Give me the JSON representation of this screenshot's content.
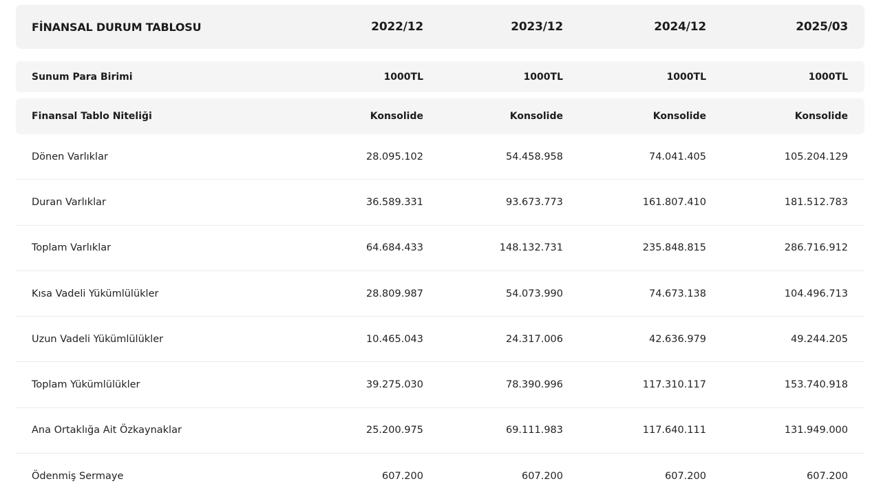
{
  "table": {
    "title": "FİNANSAL DURUM TABLOSU",
    "periods": [
      "2022/12",
      "2023/12",
      "2024/12",
      "2025/03"
    ],
    "currency": {
      "label": "Sunum Para Birimi",
      "values": [
        "1000TL",
        "1000TL",
        "1000TL",
        "1000TL"
      ]
    },
    "nature": {
      "label": "Finansal Tablo Niteliği",
      "values": [
        "Konsolide",
        "Konsolide",
        "Konsolide",
        "Konsolide"
      ]
    },
    "rows": [
      {
        "label": "Dönen Varlıklar",
        "values": [
          "28.095.102",
          "54.458.958",
          "74.041.405",
          "105.204.129"
        ]
      },
      {
        "label": "Duran Varlıklar",
        "values": [
          "36.589.331",
          "93.673.773",
          "161.807.410",
          "181.512.783"
        ]
      },
      {
        "label": "Toplam Varlıklar",
        "values": [
          "64.684.433",
          "148.132.731",
          "235.848.815",
          "286.716.912"
        ]
      },
      {
        "label": "Kısa Vadeli Yükümlülükler",
        "values": [
          "28.809.987",
          "54.073.990",
          "74.673.138",
          "104.496.713"
        ]
      },
      {
        "label": "Uzun Vadeli Yükümlülükler",
        "values": [
          "10.465.043",
          "24.317.006",
          "42.636.979",
          "49.244.205"
        ]
      },
      {
        "label": "Toplam Yükümlülükler",
        "values": [
          "39.275.030",
          "78.390.996",
          "117.310.117",
          "153.740.918"
        ]
      },
      {
        "label": "Ana Ortaklığa Ait Özkaynaklar",
        "values": [
          "25.200.975",
          "69.111.983",
          "117.640.111",
          "131.949.000"
        ]
      },
      {
        "label": "Ödenmiş Sermaye",
        "values": [
          "607.200",
          "607.200",
          "607.200",
          "607.200"
        ]
      }
    ]
  }
}
